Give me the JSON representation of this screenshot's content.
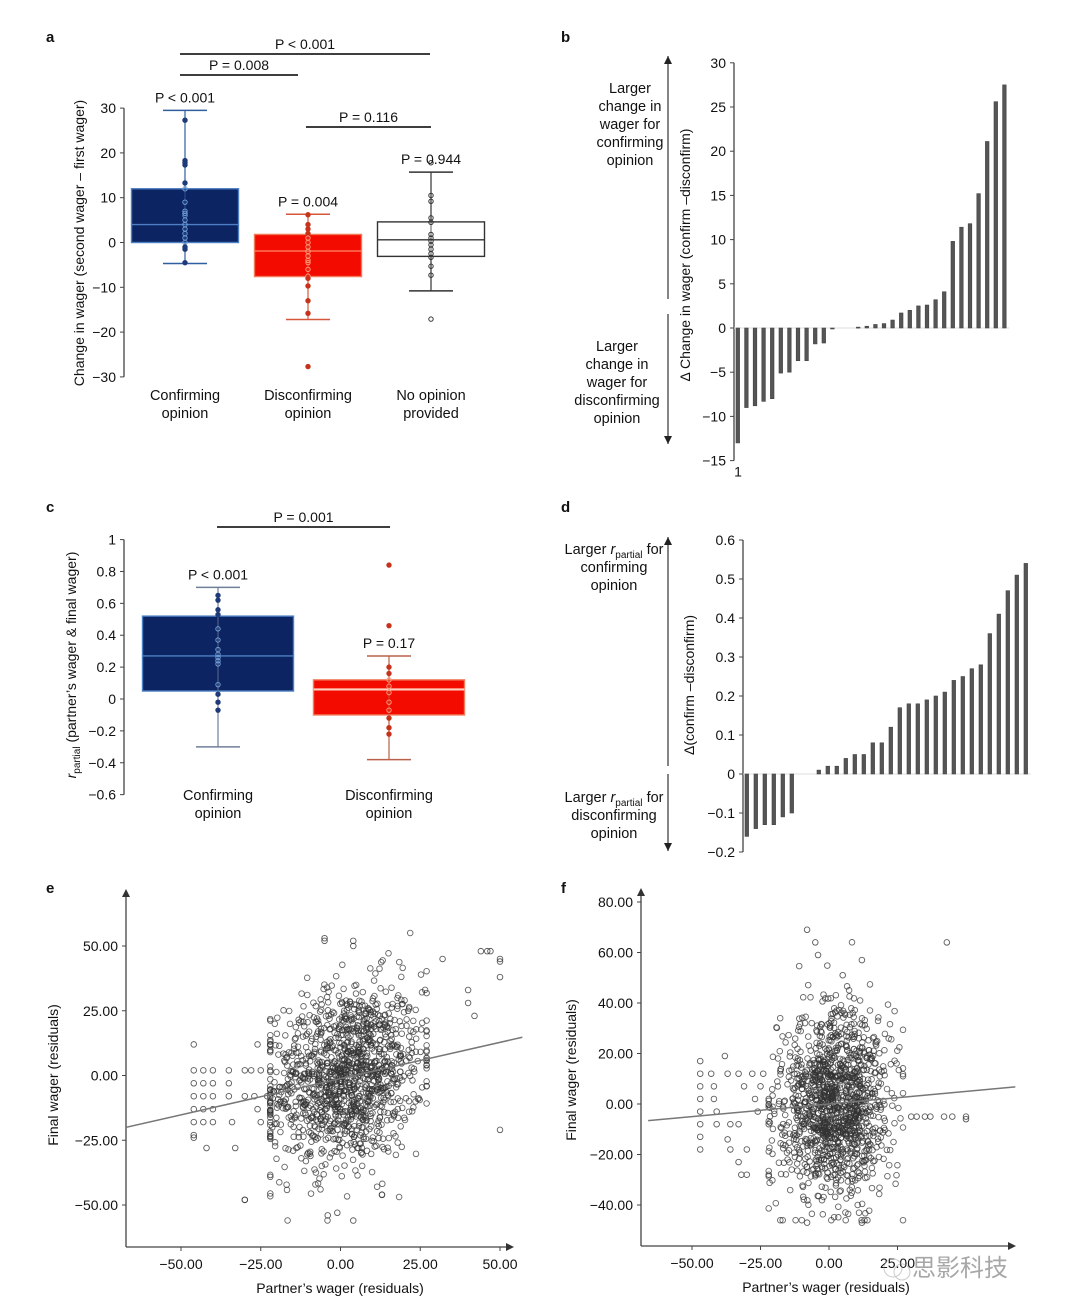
{
  "panels": {
    "a": {
      "label": "a"
    },
    "b": {
      "label": "b"
    },
    "c": {
      "label": "c"
    },
    "d": {
      "label": "d"
    },
    "e": {
      "label": "e"
    },
    "f": {
      "label": "f"
    }
  },
  "colors": {
    "confirming": "#0d2463",
    "confirming_edge": "#4d7fc4",
    "disconfirming": "#f40b00",
    "disconfirming_edge": "#f07a5a",
    "no_opinion": "#ffffff",
    "bar": "#555555",
    "axis": "#444444",
    "scatter": "#333333",
    "fit_line": "#777777"
  },
  "watermark": "思影科技",
  "chart_data": [
    {
      "id": "a",
      "type": "box",
      "title": "",
      "ylabel": "Change in wager (second wager – first wager)",
      "ylim": [
        -30,
        30
      ],
      "yticks": [
        30,
        20,
        10,
        0,
        -10,
        -20,
        -30
      ],
      "ytick_labels": [
        "30",
        "20",
        "10",
        "0",
        "−10",
        "−20",
        "−30"
      ],
      "categories": [
        [
          "Confirming",
          "opinion"
        ],
        [
          "Disconfirming",
          "opinion"
        ],
        [
          "No opinion",
          "provided"
        ]
      ],
      "boxes": [
        {
          "name": "Confirming opinion",
          "q1": 0,
          "median": 4,
          "q3": 12,
          "whisker_low": -4.7,
          "whisker_high": 29.5,
          "p_label": "P < 0.001",
          "points": [
            27.3,
            18.3,
            17.8,
            17.3,
            13.3,
            12,
            9,
            7,
            6.5,
            6,
            5,
            4,
            3,
            2,
            1,
            0,
            -1,
            -1.5,
            -4.5
          ]
        },
        {
          "name": "Disconfirming opinion",
          "q1": -7.6,
          "median": -1.9,
          "q3": 1.8,
          "whisker_low": -17.2,
          "whisker_high": 6.3,
          "p_label": "P = 0.004",
          "points": [
            6.2,
            4,
            3,
            2,
            1,
            0,
            -1,
            -2,
            -3,
            -4,
            -4.5,
            -6,
            -7.5,
            -8,
            -9.7,
            -13,
            -15.8,
            -27.7
          ]
        },
        {
          "name": "No opinion provided",
          "q1": -3.1,
          "median": 0.6,
          "q3": 4.6,
          "whisker_low": -10.8,
          "whisker_high": 15.7,
          "p_label": "P = 0.944",
          "points": [
            17.8,
            10.5,
            9.2,
            5.5,
            4.5,
            1.8,
            1,
            0.3,
            -0.5,
            -1.5,
            -2.5,
            -3.3,
            -5.3,
            -7.3,
            -17.1
          ]
        }
      ],
      "comparisons": [
        {
          "from": 0,
          "to": 2,
          "label": "P < 0.001"
        },
        {
          "from": 0,
          "to": 1,
          "label": "P = 0.008"
        },
        {
          "from": 1,
          "to": 2,
          "label": "P = 0.116"
        }
      ]
    },
    {
      "id": "b",
      "type": "bar",
      "ylabel": "Δ Change in wager (confirm –disconfirm)",
      "ylim": [
        -15,
        30
      ],
      "yticks": [
        30,
        25,
        20,
        15,
        10,
        5,
        0,
        -5,
        -10,
        -15
      ],
      "ytick_labels": [
        "30",
        "25",
        "20",
        "15",
        "10",
        "5",
        "0",
        "−5",
        "−10",
        "−15"
      ],
      "xtick_labels": [
        "1"
      ],
      "annotations": {
        "top": [
          "Larger",
          "change in",
          "wager for",
          "confirming",
          "opinion"
        ],
        "bottom": [
          "Larger",
          "change in",
          "wager for",
          "disconfirming",
          "opinion"
        ]
      },
      "values": [
        -13,
        -9,
        -8.8,
        -8.3,
        -8,
        -5.1,
        -5,
        -3.7,
        -3.7,
        -1.8,
        -1.7,
        -0.1,
        0,
        0,
        0.1,
        0.2,
        0.4,
        0.5,
        0.9,
        1.7,
        2,
        2.5,
        2.6,
        3.2,
        4.1,
        9.8,
        11.4,
        11.8,
        15.2,
        21.1,
        25.6,
        27.5
      ]
    },
    {
      "id": "c",
      "type": "box",
      "ylabel_main": "r",
      "ylabel_sub": "partial",
      "ylabel_rest": " (partner’s wager & final wager)",
      "ylim": [
        -0.6,
        1
      ],
      "yticks": [
        1,
        0.8,
        0.6,
        0.4,
        0.2,
        0,
        -0.2,
        -0.4,
        -0.6
      ],
      "ytick_labels": [
        "1",
        "0.8",
        "0.6",
        "0.4",
        "0.2",
        "0",
        "−0.2",
        "−0.4",
        "−0.6"
      ],
      "categories": [
        [
          "Confirming",
          "opinion"
        ],
        [
          "Disconfirming",
          "opinion"
        ]
      ],
      "boxes": [
        {
          "name": "Confirming opinion",
          "q1": 0.05,
          "median": 0.27,
          "q3": 0.52,
          "whisker_low": -0.3,
          "whisker_high": 0.7,
          "p_label": "P < 0.001",
          "points": [
            0.65,
            0.62,
            0.56,
            0.53,
            0.44,
            0.37,
            0.31,
            0.28,
            0.26,
            0.24,
            0.22,
            0.09,
            0.03,
            -0.02,
            -0.07
          ]
        },
        {
          "name": "Disconfirming opinion",
          "q1": -0.1,
          "median": 0.06,
          "q3": 0.12,
          "whisker_low": -0.38,
          "whisker_high": 0.27,
          "p_label": "P = 0.17",
          "points": [
            0.84,
            0.46,
            0.2,
            0.16,
            0.12,
            0.08,
            0.04,
            -0.02,
            -0.07,
            -0.12,
            -0.18,
            -0.22
          ]
        }
      ],
      "comparisons": [
        {
          "from": 0,
          "to": 1,
          "label": "P = 0.001"
        }
      ]
    },
    {
      "id": "d",
      "type": "bar",
      "ylabel": "Δ(confirm –disconfirm)",
      "ylim": [
        -0.2,
        0.6
      ],
      "yticks": [
        0.6,
        0.5,
        0.4,
        0.3,
        0.2,
        0.1,
        0,
        -0.1,
        -0.2
      ],
      "ytick_labels": [
        "0.6",
        "0.5",
        "0.4",
        "0.3",
        "0.2",
        "0.1",
        "0",
        "−0.1",
        "−0.2"
      ],
      "annotations": {
        "top": {
          "pre": "Larger ",
          "r": "r",
          "sub": "partial",
          "post": " for",
          "lines": [
            "confirming",
            "opinion"
          ]
        },
        "bottom": {
          "pre": "Larger ",
          "r": "r",
          "sub": "partial",
          "post": " for",
          "lines": [
            "disconfirming",
            "opinion"
          ]
        }
      },
      "values": [
        -0.16,
        -0.14,
        -0.13,
        -0.13,
        -0.11,
        -0.1,
        0,
        0,
        0.01,
        0.02,
        0.02,
        0.04,
        0.05,
        0.05,
        0.08,
        0.08,
        0.12,
        0.17,
        0.18,
        0.18,
        0.19,
        0.2,
        0.21,
        0.24,
        0.25,
        0.27,
        0.28,
        0.36,
        0.41,
        0.47,
        0.51,
        0.54
      ]
    },
    {
      "id": "e",
      "type": "scatter",
      "xlabel": "Partner’s wager (residuals)",
      "ylabel": "Final wager (residuals)",
      "xlim": [
        -67,
        55
      ],
      "ylim": [
        -66,
        70
      ],
      "xticks": [
        -50,
        -25,
        0,
        25,
        50
      ],
      "xtick_labels": [
        "−50.00",
        "−25.00",
        "0.00",
        "25.00",
        "50.00"
      ],
      "yticks": [
        50,
        25,
        0,
        -25,
        -50
      ],
      "ytick_labels": [
        "50.00",
        "25.00",
        "0.00",
        "−25.00",
        "−50.00"
      ],
      "fit_line": {
        "slope": 0.28,
        "intercept": -1.2
      },
      "cluster": {
        "x_mean": 2,
        "x_sd": 12,
        "y_mean": 0,
        "y_sd": 17,
        "n": 1300
      },
      "points": [
        [
          -46,
          12
        ],
        [
          -46,
          2
        ],
        [
          -46,
          -3
        ],
        [
          -46,
          -8
        ],
        [
          -46,
          -13
        ],
        [
          -46,
          -18
        ],
        [
          -46,
          -23
        ],
        [
          -46,
          -24
        ],
        [
          -43,
          2
        ],
        [
          -43,
          -3
        ],
        [
          -43,
          -8
        ],
        [
          -43,
          -13
        ],
        [
          -43,
          -18
        ],
        [
          -42,
          -28
        ],
        [
          -40,
          2
        ],
        [
          -40,
          -3
        ],
        [
          -40,
          -8
        ],
        [
          -40,
          -13
        ],
        [
          -40,
          -18
        ],
        [
          -35,
          2
        ],
        [
          -35,
          -3
        ],
        [
          -35,
          -8
        ],
        [
          -34,
          -18
        ],
        [
          -33,
          -28
        ],
        [
          -30,
          2
        ],
        [
          -30,
          -8
        ],
        [
          -30,
          -48
        ],
        [
          -28,
          2
        ],
        [
          -27,
          -8
        ],
        [
          -26,
          12
        ],
        [
          -26,
          -13
        ],
        [
          -25,
          2
        ],
        [
          -25,
          -18
        ],
        [
          -23,
          -8
        ],
        [
          -22,
          2
        ],
        [
          -22,
          -18
        ],
        [
          32,
          45
        ],
        [
          40,
          33
        ],
        [
          40,
          28
        ],
        [
          42,
          23
        ],
        [
          44,
          48
        ],
        [
          46,
          48
        ],
        [
          47,
          48
        ],
        [
          50,
          45
        ],
        [
          50,
          44
        ],
        [
          50,
          38
        ],
        [
          50,
          -21
        ],
        [
          -5,
          53
        ],
        [
          -5,
          52
        ],
        [
          4,
          52
        ],
        [
          4,
          50
        ],
        [
          -4,
          -54
        ],
        [
          -1,
          -53
        ],
        [
          4,
          -56
        ],
        [
          13,
          -46
        ],
        [
          -30,
          -48
        ]
      ]
    },
    {
      "id": "f",
      "type": "scatter",
      "xlabel": "Partner’s wager (residuals)",
      "ylabel": "Final wager (residuals)",
      "xlim": [
        -66,
        73
      ],
      "ylim": [
        -56,
        84
      ],
      "xticks": [
        -50,
        -25,
        0,
        25
      ],
      "xtick_labels": [
        "−50.00",
        "−25.00",
        "0.00",
        "25.00"
      ],
      "yticks": [
        80,
        60,
        40,
        20,
        0,
        -20,
        -40
      ],
      "ytick_labels": [
        "80.00",
        "60.00",
        "40.00",
        "20.00",
        "0.00",
        "−20.00",
        "−40.00"
      ],
      "fit_line": {
        "slope": 0.1,
        "intercept": 0
      },
      "cluster": {
        "x_mean": 2,
        "x_sd": 10,
        "y_mean": 0,
        "y_sd": 18,
        "n": 1300
      },
      "points": [
        [
          -47,
          17
        ],
        [
          -47,
          12
        ],
        [
          -47,
          7
        ],
        [
          -47,
          2
        ],
        [
          -47,
          -3
        ],
        [
          -47,
          -8
        ],
        [
          -47,
          -13
        ],
        [
          -47,
          -18
        ],
        [
          -43,
          12
        ],
        [
          -42,
          7
        ],
        [
          -42,
          2
        ],
        [
          -41,
          -3
        ],
        [
          -41,
          -8
        ],
        [
          -38,
          19
        ],
        [
          -37,
          12
        ],
        [
          -37,
          -14
        ],
        [
          -36,
          -8
        ],
        [
          -36,
          -18
        ],
        [
          -33,
          12
        ],
        [
          -33,
          -8
        ],
        [
          -33,
          -23
        ],
        [
          -32,
          -28
        ],
        [
          -31,
          7
        ],
        [
          -30,
          -18
        ],
        [
          -30,
          -28
        ],
        [
          -28,
          12
        ],
        [
          -27,
          2
        ],
        [
          -26,
          -3
        ],
        [
          -25,
          7
        ],
        [
          -24,
          12
        ],
        [
          -22,
          2
        ],
        [
          -22,
          -8
        ],
        [
          -22,
          -28
        ],
        [
          30,
          -5
        ],
        [
          32,
          -5
        ],
        [
          35,
          -5
        ],
        [
          37,
          -5
        ],
        [
          42,
          -5
        ],
        [
          45,
          -5
        ],
        [
          50,
          -5
        ],
        [
          50,
          -6
        ],
        [
          43,
          64
        ],
        [
          -8,
          69
        ],
        [
          -5,
          64
        ],
        [
          -4,
          59
        ],
        [
          12,
          57
        ],
        [
          5,
          51
        ],
        [
          -8,
          -47
        ],
        [
          12,
          -47
        ]
      ]
    }
  ]
}
